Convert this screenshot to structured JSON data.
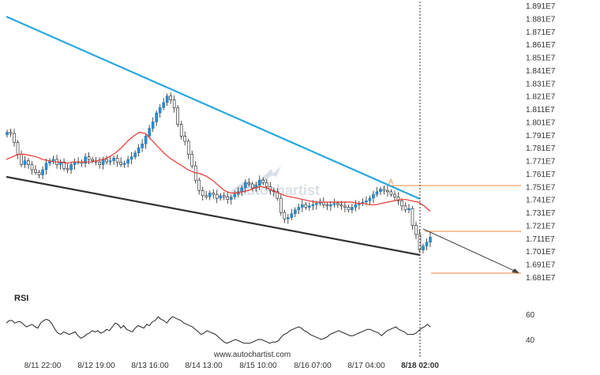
{
  "chart_data": {
    "type": "candlestick",
    "yaxis": {
      "ticks": [
        "1.891E7",
        "1.881E7",
        "1.871E7",
        "1.861E7",
        "1.851E7",
        "1.841E7",
        "1.831E7",
        "1.821E7",
        "1.811E7",
        "1.801E7",
        "1.791E7",
        "1.781E7",
        "1.771E7",
        "1.761E7",
        "1.751E7",
        "1.741E7",
        "1.731E7",
        "1.721E7",
        "1.711E7",
        "1.701E7",
        "1.691E7",
        "1.681E7"
      ],
      "range": [
        16770000,
        18930000
      ]
    },
    "xaxis": {
      "ticks": [
        "8/11 22:00",
        "8/12 19:00",
        "8/13 16:00",
        "8/14 13:00",
        "8/15 10:00",
        "8/16 07:00",
        "8/17 04:00",
        "8/18 02:00"
      ],
      "highlight": "8/18 02:00"
    },
    "watermark": "autochartist",
    "price_closes": [
      17930000,
      17920000,
      17850000,
      17760000,
      17680000,
      17710000,
      17680000,
      17640000,
      17620000,
      17600000,
      17640000,
      17690000,
      17710000,
      17720000,
      17680000,
      17700000,
      17650000,
      17640000,
      17680000,
      17700000,
      17700000,
      17690000,
      17740000,
      17720000,
      17710000,
      17700000,
      17680000,
      17720000,
      17700000,
      17710000,
      17730000,
      17700000,
      17680000,
      17690000,
      17720000,
      17740000,
      17770000,
      17810000,
      17840000,
      17900000,
      17960000,
      18010000,
      18080000,
      18120000,
      18160000,
      18210000,
      18180000,
      18120000,
      17990000,
      17900000,
      17860000,
      17760000,
      17670000,
      17560000,
      17480000,
      17440000,
      17430000,
      17460000,
      17450000,
      17420000,
      17440000,
      17430000,
      17410000,
      17430000,
      17450000,
      17470000,
      17500000,
      17540000,
      17530000,
      17500000,
      17520000,
      17560000,
      17540000,
      17510000,
      17480000,
      17470000,
      17420000,
      17310000,
      17260000,
      17270000,
      17300000,
      17330000,
      17350000,
      17370000,
      17350000,
      17360000,
      17370000,
      17380000,
      17390000,
      17370000,
      17360000,
      17370000,
      17380000,
      17370000,
      17360000,
      17350000,
      17330000,
      17350000,
      17370000,
      17380000,
      17390000,
      17400000,
      17420000,
      17450000,
      17470000,
      17490000,
      17480000,
      17470000,
      17450000,
      17430000,
      17400000,
      17360000,
      17330000,
      17340000,
      17210000,
      17140000,
      17020000,
      17050000,
      17080000,
      17120000
    ],
    "moving_average": [
      17720000,
      17740000,
      17760000,
      17760000,
      17750000,
      17740000,
      17720000,
      17710000,
      17700000,
      17700000,
      17690000,
      17700000,
      17700000,
      17700000,
      17700000,
      17710000,
      17720000,
      17740000,
      17770000,
      17810000,
      17860000,
      17900000,
      17930000,
      17920000,
      17870000,
      17820000,
      17770000,
      17730000,
      17700000,
      17670000,
      17640000,
      17620000,
      17610000,
      17590000,
      17560000,
      17520000,
      17480000,
      17460000,
      17460000,
      17470000,
      17480000,
      17500000,
      17510000,
      17500000,
      17480000,
      17460000,
      17440000,
      17430000,
      17420000,
      17410000,
      17400000,
      17390000,
      17390000,
      17390000,
      17390000,
      17390000,
      17390000,
      17390000,
      17380000,
      17380000,
      17370000,
      17370000,
      17380000,
      17390000,
      17400000,
      17410000,
      17410000,
      17400000,
      17390000,
      17360000,
      17320000
    ],
    "trendlines": [
      {
        "name": "resistance",
        "color": "#29a8e0",
        "from": [
          "8/11 ~12:00",
          18860000
        ],
        "to": [
          "8/18 02:00",
          17420000
        ]
      },
      {
        "name": "support",
        "color": "#333333",
        "from": [
          "8/11 ~12:00",
          17590000
        ],
        "to": [
          "8/18 02:00",
          16980000
        ]
      }
    ],
    "forecast_arrow": {
      "from": 17200000,
      "to": 16830000
    },
    "levels": [
      {
        "price": 17510000,
        "color": "#f08a3c"
      },
      {
        "price": 17170000,
        "color": "#f08a3c"
      },
      {
        "price": 16820000,
        "color": "#f08a3c"
      }
    ],
    "point_label": "A",
    "rsi": {
      "title": "RSI",
      "ticks": [
        "60",
        "40"
      ],
      "range": [
        30,
        72
      ],
      "values": [
        53,
        55,
        55,
        53,
        54,
        54,
        52,
        50,
        51,
        52,
        50,
        49,
        53,
        55,
        56,
        55,
        52,
        48,
        45,
        44,
        46,
        45,
        44,
        45,
        46,
        43,
        41,
        42,
        44,
        45,
        47,
        46,
        47,
        45,
        46,
        48,
        47,
        50,
        53,
        52,
        49,
        51,
        48,
        47,
        46,
        49,
        51,
        50,
        49,
        52,
        51,
        54,
        55,
        58,
        56,
        55,
        53,
        56,
        58,
        57,
        56,
        55,
        53,
        52,
        51,
        50,
        48,
        46,
        44,
        45,
        47,
        46,
        45,
        44,
        42,
        40,
        38,
        37,
        38,
        39,
        40,
        39,
        38,
        37,
        37,
        37,
        38,
        39,
        40,
        40,
        39,
        38,
        37,
        38,
        38,
        39,
        42,
        44,
        45,
        47,
        48,
        49,
        50,
        49,
        47,
        46,
        44,
        43,
        42,
        41,
        40,
        41,
        42,
        44,
        45,
        46,
        47,
        46,
        45,
        44,
        43,
        43,
        44,
        45,
        46,
        47,
        48,
        48,
        47,
        46,
        45,
        43,
        45,
        47,
        48,
        49,
        50,
        48,
        47,
        46,
        44,
        44,
        44,
        45,
        47,
        49,
        50,
        52,
        50
      ]
    }
  },
  "credit": "www.autochartist.com"
}
